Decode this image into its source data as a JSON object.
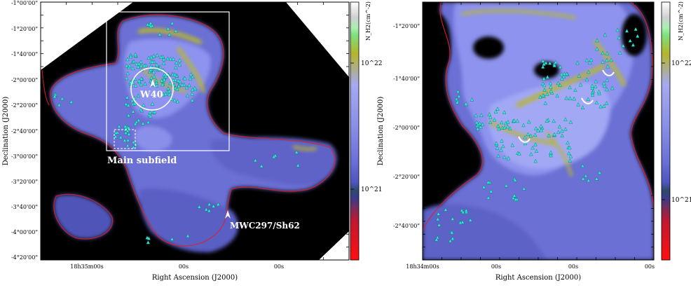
{
  "left_panel": {
    "y_axis_label": "Declination (J2000)",
    "x_axis_label": "Right Ascension (J2000)",
    "dec_ticks": [
      "-1°00'00\"",
      "-1°20'00\"",
      "-1°40'00\"",
      "-2°00'00\"",
      "-2°20'00\"",
      "-2°40'00\"",
      "-3°00'00\"",
      "-3°20'00\"",
      "-3°40'00\"",
      "-4°00'00\"",
      "-4°20'00\""
    ],
    "ra_ticks": [
      "18h35m00s",
      "00s",
      "00s"
    ],
    "annotations": {
      "w40": "W40",
      "main_subfield": "Main subfield",
      "mwc297": "MWC297/Sh62"
    },
    "colorbar": {
      "label": "N_H2(cm^-2)",
      "ticks": [
        "10^22",
        "10^21"
      ]
    }
  },
  "right_panel": {
    "y_axis_label": "Declination (J2000)",
    "x_axis_label": "Right Ascension (J2000)",
    "dec_ticks": [
      "-1°20'00\"",
      "-1°40'00\"",
      "-2°00'00\"",
      "-2°20'00\"",
      "-2°40'00\""
    ],
    "ra_ticks": [
      "18h34m00s",
      "00s",
      "00s",
      "00s"
    ],
    "colorbar": {
      "label": "N_H2(cm^-2)",
      "ticks": [
        "10^22",
        "10^21"
      ]
    }
  },
  "colors": {
    "background_sky": "#000000",
    "low_density": "#5a5fd0",
    "mid_density": "#8a90ee",
    "high_density": "#b6b42a",
    "contour": "#e0202a",
    "yso_marker": "#33e6d6",
    "annotation": "#ffffff"
  }
}
